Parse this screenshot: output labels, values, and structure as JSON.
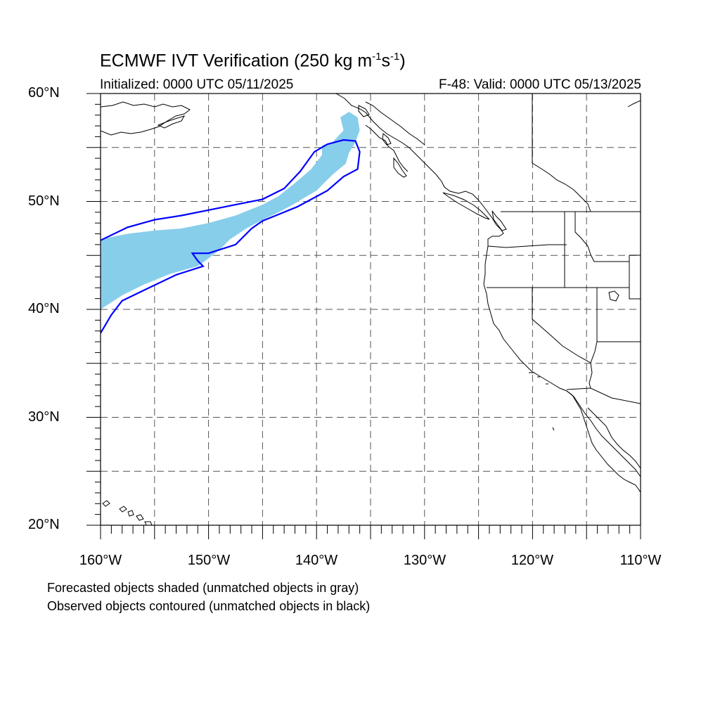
{
  "title": {
    "main": "ECMWF IVT Verification (250 kg m",
    "sup1": "-1",
    "mid": "s",
    "sup2": "-1",
    "end": ")"
  },
  "init_text": "Initialized: 0000 UTC 05/11/2025",
  "valid_text": "F-48: Valid: 0000 UTC 05/13/2025",
  "axes": {
    "lat_range": [
      20,
      60
    ],
    "lon_range": [
      -160,
      -110
    ],
    "lat_ticks": [
      {
        "value": 60,
        "label": "60°N"
      },
      {
        "value": 50,
        "label": "50°N"
      },
      {
        "value": 40,
        "label": "40°N"
      },
      {
        "value": 30,
        "label": "30°N"
      },
      {
        "value": 20,
        "label": "20°N"
      }
    ],
    "lon_ticks": [
      {
        "value": -160,
        "label": "160°W"
      },
      {
        "value": -150,
        "label": "150°W"
      },
      {
        "value": -140,
        "label": "140°W"
      },
      {
        "value": -130,
        "label": "130°W"
      },
      {
        "value": -120,
        "label": "120°W"
      },
      {
        "value": -110,
        "label": "110°W"
      }
    ],
    "grid_interval_deg": 5,
    "grid": true
  },
  "legend_notes": [
    "Forecasted objects shaded (unmatched objects in gray)",
    "Observed objects contoured (unmatched objects in black)"
  ],
  "colors": {
    "forecast_fill": "#87ceeb",
    "observed_contour": "#0000ff",
    "coastline": "#000000",
    "grid": "#555555"
  },
  "objects": {
    "forecast_shaded": [
      [
        -160,
        46.5
      ],
      [
        -157.5,
        47.0
      ],
      [
        -155,
        47.3
      ],
      [
        -152.5,
        47.5
      ],
      [
        -150,
        48.0
      ],
      [
        -147.5,
        48.7
      ],
      [
        -145,
        49.7
      ],
      [
        -143.5,
        50.5
      ],
      [
        -142,
        51.7
      ],
      [
        -140.5,
        53.0
      ],
      [
        -139.5,
        54.3
      ],
      [
        -139.5,
        55.2
      ],
      [
        -138.5,
        55.5
      ],
      [
        -137.5,
        56.6
      ],
      [
        -137.8,
        57.8
      ],
      [
        -137.0,
        58.3
      ],
      [
        -136.2,
        57.8
      ],
      [
        -136.0,
        56.6
      ],
      [
        -136.4,
        55.5
      ],
      [
        -137.0,
        54.5
      ],
      [
        -137.3,
        53.5
      ],
      [
        -138.5,
        52.5
      ],
      [
        -140.0,
        51.0
      ],
      [
        -141.2,
        50.3
      ],
      [
        -142.2,
        49.7
      ],
      [
        -143.5,
        49.0
      ],
      [
        -145.0,
        48.3
      ],
      [
        -146.5,
        47.5
      ],
      [
        -148.0,
        46.5
      ],
      [
        -149.0,
        45.5
      ],
      [
        -150.3,
        44.5
      ],
      [
        -151.0,
        44.0
      ],
      [
        -153.5,
        43.3
      ],
      [
        -156.0,
        42.3
      ],
      [
        -158.0,
        41.3
      ],
      [
        -160,
        40.0
      ]
    ],
    "observed_contour": [
      [
        -160,
        46.4
      ],
      [
        -157.5,
        47.6
      ],
      [
        -155,
        48.3
      ],
      [
        -152.5,
        48.7
      ],
      [
        -150,
        49.2
      ],
      [
        -147.5,
        49.7
      ],
      [
        -145,
        50.2
      ],
      [
        -143,
        51.2
      ],
      [
        -141.5,
        52.8
      ],
      [
        -140.2,
        54.6
      ],
      [
        -139.0,
        55.3
      ],
      [
        -137.5,
        55.7
      ],
      [
        -136.4,
        55.6
      ],
      [
        -136.0,
        54.6
      ],
      [
        -136.2,
        53.0
      ],
      [
        -137.5,
        52.3
      ],
      [
        -139.0,
        51.0
      ],
      [
        -140.3,
        50.3
      ],
      [
        -141.8,
        49.5
      ],
      [
        -143.5,
        48.8
      ],
      [
        -145.0,
        48.2
      ],
      [
        -146.0,
        47.5
      ],
      [
        -147.5,
        46.0
      ],
      [
        -150.0,
        45.2
      ],
      [
        -151.5,
        45.2
      ],
      [
        -151.0,
        44.5
      ],
      [
        -150.5,
        44.0
      ],
      [
        -153.0,
        43.2
      ],
      [
        -155.5,
        42.0
      ],
      [
        -158.0,
        40.8
      ],
      [
        -159.0,
        39.5
      ],
      [
        -160,
        37.8
      ]
    ]
  }
}
